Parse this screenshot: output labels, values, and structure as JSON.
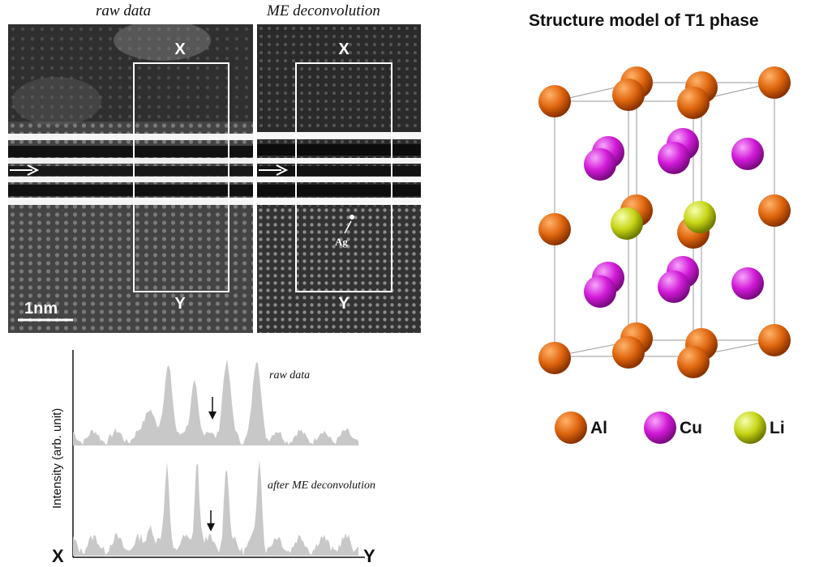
{
  "figure": {
    "left_panels": {
      "raw_label": "raw data",
      "me_label": "ME deconvolution",
      "x_marker": "X",
      "y_marker": "Y",
      "scale_bar": "1nm",
      "ag_marker": "Ag"
    },
    "profile_plot": {
      "ylabel": "Intensity (arb. unit)",
      "x_start": "X",
      "x_end": "Y",
      "top_trace_label": "raw data",
      "bottom_trace_label": "after ME deconvolution",
      "fill_color": "#c8c8c8"
    },
    "structure_model": {
      "title": "Structure model of T1 phase",
      "legend": [
        {
          "label": "Al",
          "color": "#e0670f"
        },
        {
          "label": "Cu",
          "color": "#d21ad8"
        },
        {
          "label": "Li",
          "color": "#c8d617"
        }
      ]
    }
  }
}
